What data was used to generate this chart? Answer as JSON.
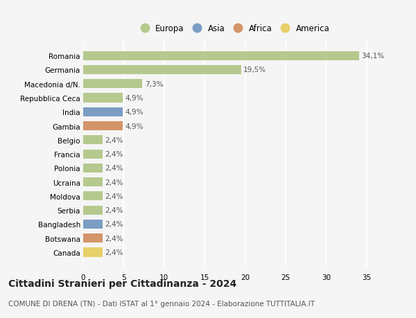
{
  "countries": [
    "Romania",
    "Germania",
    "Macedonia d/N.",
    "Repubblica Ceca",
    "India",
    "Gambia",
    "Belgio",
    "Francia",
    "Polonia",
    "Ucraina",
    "Moldova",
    "Serbia",
    "Bangladesh",
    "Botswana",
    "Canada"
  ],
  "values": [
    34.1,
    19.5,
    7.3,
    4.9,
    4.9,
    4.9,
    2.4,
    2.4,
    2.4,
    2.4,
    2.4,
    2.4,
    2.4,
    2.4,
    2.4
  ],
  "labels": [
    "34,1%",
    "19,5%",
    "7,3%",
    "4,9%",
    "4,9%",
    "4,9%",
    "2,4%",
    "2,4%",
    "2,4%",
    "2,4%",
    "2,4%",
    "2,4%",
    "2,4%",
    "2,4%",
    "2,4%"
  ],
  "continents": [
    "Europa",
    "Europa",
    "Europa",
    "Europa",
    "Asia",
    "Africa",
    "Europa",
    "Europa",
    "Europa",
    "Europa",
    "Europa",
    "Europa",
    "Asia",
    "Africa",
    "America"
  ],
  "colors": {
    "Europa": "#b5c98e",
    "Asia": "#7b9dc4",
    "Africa": "#d4956a",
    "America": "#e8d06a"
  },
  "legend_order": [
    "Europa",
    "Asia",
    "Africa",
    "America"
  ],
  "title": "Cittadini Stranieri per Cittadinanza - 2024",
  "subtitle": "COMUNE DI DRENA (TN) - Dati ISTAT al 1° gennaio 2024 - Elaborazione TUTTITALIA.IT",
  "xlim": [
    0,
    37
  ],
  "xticks": [
    0,
    5,
    10,
    15,
    20,
    25,
    30,
    35
  ],
  "bg_color": "#f5f5f5",
  "grid_color": "#ffffff",
  "title_fontsize": 10,
  "subtitle_fontsize": 7.5,
  "label_fontsize": 7.5,
  "tick_fontsize": 7.5,
  "legend_fontsize": 8.5
}
